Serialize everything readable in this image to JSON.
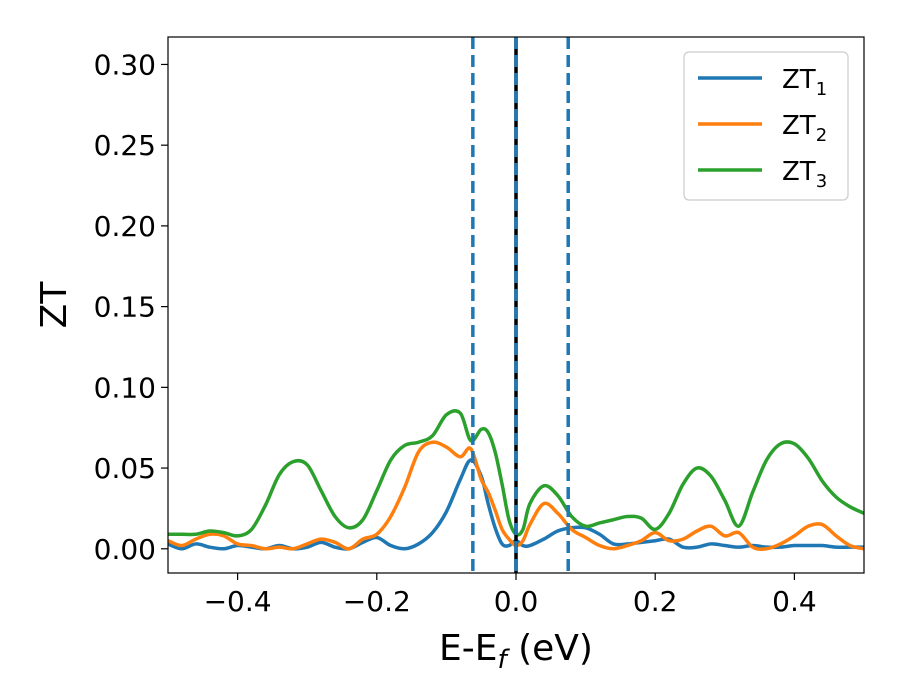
{
  "chart_data": {
    "type": "line",
    "xlabel": "E-E",
    "xlabel_sub": "f",
    "xlabel_unit": " (eV)",
    "ylabel": "ZT",
    "xlim": [
      -0.5,
      0.5
    ],
    "ylim": [
      -0.015,
      0.317
    ],
    "xticks": [
      -0.4,
      -0.2,
      0.0,
      0.2,
      0.4
    ],
    "xtick_labels": [
      "−0.4",
      "−0.2",
      "0.0",
      "0.2",
      "0.4"
    ],
    "yticks": [
      0.0,
      0.05,
      0.1,
      0.15,
      0.2,
      0.25,
      0.3
    ],
    "ytick_labels": [
      "0.00",
      "0.05",
      "0.10",
      "0.15",
      "0.20",
      "0.25",
      "0.30"
    ],
    "grid": false,
    "legend_position": "top-right",
    "vlines": [
      {
        "x": 0.0,
        "style": "solid",
        "color": "#000000"
      },
      {
        "x": 0.0,
        "style": "dashed",
        "color": "#1f77b4"
      },
      {
        "x": -0.062,
        "style": "dashed",
        "color": "#1f77b4"
      },
      {
        "x": 0.075,
        "style": "dashed",
        "color": "#1f77b4"
      }
    ],
    "series": [
      {
        "name": "ZT",
        "name_sub": "1",
        "color": "#1f77b4",
        "x": [
          -0.5,
          -0.48,
          -0.46,
          -0.44,
          -0.42,
          -0.4,
          -0.38,
          -0.36,
          -0.34,
          -0.32,
          -0.3,
          -0.28,
          -0.26,
          -0.24,
          -0.22,
          -0.2,
          -0.18,
          -0.16,
          -0.14,
          -0.12,
          -0.1,
          -0.08,
          -0.065,
          -0.05,
          -0.04,
          -0.03,
          -0.02,
          -0.01,
          0.0,
          0.01,
          0.02,
          0.04,
          0.06,
          0.08,
          0.1,
          0.12,
          0.14,
          0.16,
          0.18,
          0.2,
          0.22,
          0.24,
          0.26,
          0.28,
          0.3,
          0.32,
          0.34,
          0.36,
          0.38,
          0.4,
          0.42,
          0.44,
          0.46,
          0.48,
          0.5
        ],
        "values": [
          0.003,
          0.0,
          0.003,
          0.001,
          0.0,
          0.002,
          0.001,
          0.0,
          0.002,
          0.0,
          0.001,
          0.004,
          0.001,
          0.0,
          0.004,
          0.007,
          0.002,
          0.0,
          0.003,
          0.01,
          0.023,
          0.043,
          0.055,
          0.045,
          0.028,
          0.013,
          0.003,
          0.002,
          0.005,
          0.002,
          0.002,
          0.006,
          0.011,
          0.013,
          0.013,
          0.009,
          0.003,
          0.003,
          0.004,
          0.005,
          0.006,
          0.001,
          0.001,
          0.003,
          0.002,
          0.001,
          0.002,
          0.001,
          0.001,
          0.002,
          0.002,
          0.002,
          0.001,
          0.001,
          0.001
        ]
      },
      {
        "name": "ZT",
        "name_sub": "2",
        "color": "#ff7f0e",
        "x": [
          -0.5,
          -0.48,
          -0.46,
          -0.44,
          -0.42,
          -0.4,
          -0.38,
          -0.36,
          -0.34,
          -0.32,
          -0.3,
          -0.28,
          -0.26,
          -0.24,
          -0.22,
          -0.2,
          -0.18,
          -0.16,
          -0.14,
          -0.12,
          -0.1,
          -0.08,
          -0.065,
          -0.05,
          -0.04,
          -0.03,
          -0.02,
          -0.01,
          0.0,
          0.01,
          0.02,
          0.04,
          0.06,
          0.08,
          0.1,
          0.12,
          0.14,
          0.16,
          0.18,
          0.2,
          0.22,
          0.24,
          0.26,
          0.28,
          0.3,
          0.32,
          0.34,
          0.36,
          0.38,
          0.4,
          0.42,
          0.44,
          0.46,
          0.48,
          0.5
        ],
        "values": [
          0.005,
          0.002,
          0.006,
          0.009,
          0.008,
          0.003,
          0.002,
          0.0,
          0.001,
          0.0,
          0.003,
          0.006,
          0.004,
          0.0,
          0.006,
          0.009,
          0.02,
          0.038,
          0.06,
          0.066,
          0.063,
          0.057,
          0.062,
          0.043,
          0.035,
          0.024,
          0.012,
          0.006,
          0.002,
          0.005,
          0.015,
          0.028,
          0.022,
          0.012,
          0.007,
          0.002,
          0.0,
          0.002,
          0.005,
          0.01,
          0.005,
          0.006,
          0.011,
          0.014,
          0.008,
          0.01,
          0.001,
          0.0,
          0.003,
          0.008,
          0.014,
          0.015,
          0.008,
          0.002,
          0.0
        ]
      },
      {
        "name": "ZT",
        "name_sub": "3",
        "color": "#2ca02c",
        "x": [
          -0.5,
          -0.48,
          -0.46,
          -0.44,
          -0.42,
          -0.4,
          -0.38,
          -0.36,
          -0.34,
          -0.32,
          -0.3,
          -0.28,
          -0.26,
          -0.24,
          -0.22,
          -0.2,
          -0.18,
          -0.16,
          -0.14,
          -0.12,
          -0.1,
          -0.08,
          -0.065,
          -0.05,
          -0.04,
          -0.03,
          -0.02,
          -0.01,
          0.0,
          0.01,
          0.02,
          0.04,
          0.06,
          0.08,
          0.1,
          0.12,
          0.14,
          0.16,
          0.18,
          0.2,
          0.22,
          0.24,
          0.26,
          0.28,
          0.3,
          0.32,
          0.34,
          0.36,
          0.38,
          0.4,
          0.42,
          0.44,
          0.46,
          0.48,
          0.5
        ],
        "values": [
          0.009,
          0.009,
          0.009,
          0.011,
          0.01,
          0.008,
          0.012,
          0.027,
          0.046,
          0.054,
          0.052,
          0.036,
          0.02,
          0.013,
          0.018,
          0.036,
          0.055,
          0.064,
          0.066,
          0.07,
          0.083,
          0.084,
          0.067,
          0.074,
          0.072,
          0.06,
          0.04,
          0.018,
          0.009,
          0.012,
          0.028,
          0.039,
          0.033,
          0.02,
          0.014,
          0.016,
          0.018,
          0.02,
          0.019,
          0.012,
          0.022,
          0.04,
          0.05,
          0.045,
          0.03,
          0.014,
          0.035,
          0.055,
          0.065,
          0.065,
          0.056,
          0.042,
          0.032,
          0.026,
          0.022
        ]
      }
    ]
  }
}
